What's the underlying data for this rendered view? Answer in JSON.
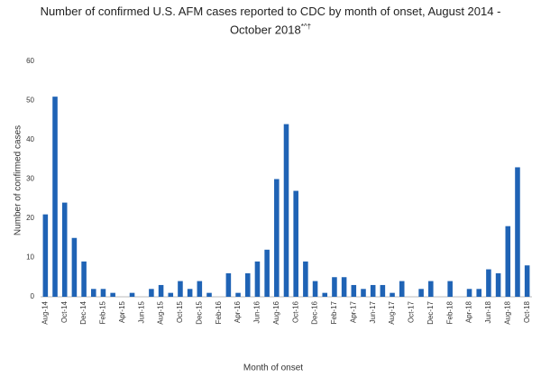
{
  "chart_data": {
    "type": "bar",
    "title": "Number of confirmed U.S. AFM cases reported to CDC by month of onset, August 2014 - October 2018",
    "title_superscript": "*^†",
    "y_label": "Number of confirmed cases",
    "x_label": "Month  of onset",
    "categories": [
      "Aug-14",
      null,
      "Oct-14",
      null,
      "Dec-14",
      null,
      "Feb-15",
      null,
      "Apr-15",
      null,
      "Jun-15",
      null,
      "Aug-15",
      null,
      "Oct-15",
      null,
      "Dec-15",
      null,
      "Feb-16",
      null,
      "Apr-16",
      null,
      "Jun-16",
      null,
      "Aug-16",
      null,
      "Oct-16",
      null,
      "Dec-16",
      null,
      "Feb-17",
      null,
      "Apr-17",
      null,
      "Jun-17",
      null,
      "Aug-17",
      null,
      "Oct-17",
      null,
      "Dec-17",
      null,
      "Feb-18",
      null,
      "Apr-18",
      null,
      "Jun-18",
      null,
      "Aug-18",
      null,
      "Oct-18"
    ],
    "values": [
      21,
      51,
      24,
      15,
      9,
      2,
      2,
      1,
      0,
      1,
      0,
      2,
      3,
      1,
      4,
      2,
      4,
      1,
      0,
      6,
      1,
      6,
      9,
      12,
      30,
      44,
      27,
      9,
      4,
      1,
      5,
      5,
      3,
      2,
      3,
      3,
      1,
      4,
      0,
      2,
      4,
      0,
      4,
      0,
      2,
      2,
      7,
      6,
      18,
      33,
      8
    ],
    "color": "#1f63b5",
    "ylim": [
      0,
      60
    ],
    "yticks": [
      0,
      10,
      20,
      30,
      40,
      50,
      60
    ],
    "grid": false
  }
}
